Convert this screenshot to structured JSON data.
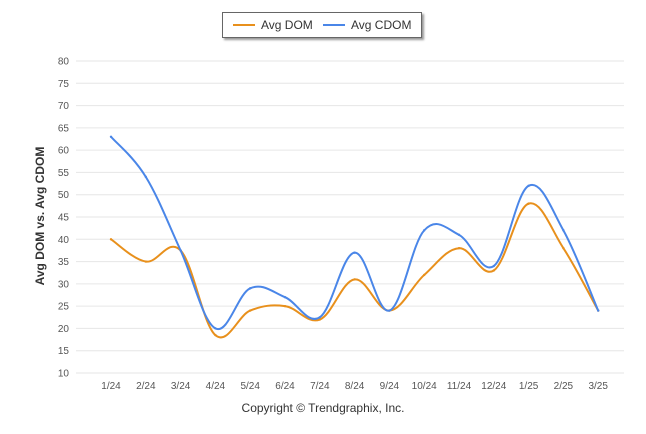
{
  "chart_data": {
    "type": "line",
    "title": "",
    "xlabel": "",
    "ylabel": "Avg DOM vs. Avg CDOM",
    "x": [
      "1/24",
      "2/24",
      "3/24",
      "4/24",
      "5/24",
      "6/24",
      "7/24",
      "8/24",
      "9/24",
      "10/24",
      "11/24",
      "12/24",
      "1/25",
      "2/25",
      "3/25"
    ],
    "yticks": [
      10,
      15,
      20,
      25,
      30,
      35,
      40,
      45,
      50,
      55,
      60,
      65,
      70,
      75,
      80
    ],
    "ylim": [
      10,
      80
    ],
    "grid": true,
    "legend_position": "top-center",
    "series": [
      {
        "name": "Avg DOM",
        "color": "#e8901c",
        "values": [
          40,
          35,
          37.5,
          18.5,
          24,
          25,
          22,
          31,
          24,
          32,
          38,
          33,
          48,
          38,
          24
        ]
      },
      {
        "name": "Avg CDOM",
        "color": "#4a86e8",
        "values": [
          63,
          54,
          37.5,
          20,
          29,
          27,
          22.5,
          37,
          24,
          42,
          41,
          34,
          52,
          42,
          24
        ]
      }
    ]
  },
  "footer": {
    "copyright": "Copyright © Trendgraphix, Inc."
  }
}
